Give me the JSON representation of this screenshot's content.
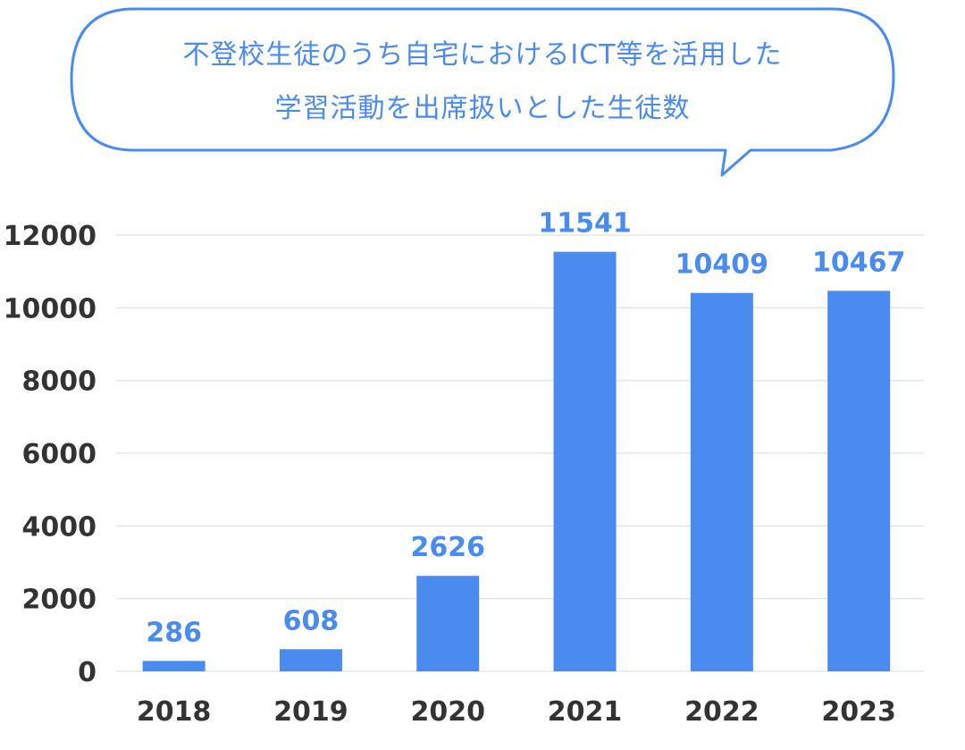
{
  "title_lines": [
    "不登校生徒のうち自宅におけるICT等を活用した",
    "学習活動を出席扱いとした生徒数"
  ],
  "colors": {
    "bar": "#4a8bf0",
    "value_label": "#4a8bf0",
    "axis_text": "#333333",
    "grid": "#e5e5e5",
    "bubble_stroke": "#4a8bf0"
  },
  "chart_data": {
    "type": "bar",
    "categories": [
      "2018",
      "2019",
      "2020",
      "2021",
      "2022",
      "2023"
    ],
    "values": [
      286,
      608,
      2626,
      11541,
      10409,
      10467
    ],
    "data_labels": [
      "286",
      "608",
      "2626",
      "11541",
      "10409",
      "10467"
    ],
    "yticks": [
      "0",
      "2000",
      "4000",
      "6000",
      "8000",
      "10000",
      "12000"
    ],
    "ylim": [
      0,
      12000
    ],
    "grid": true,
    "legend": "none"
  }
}
